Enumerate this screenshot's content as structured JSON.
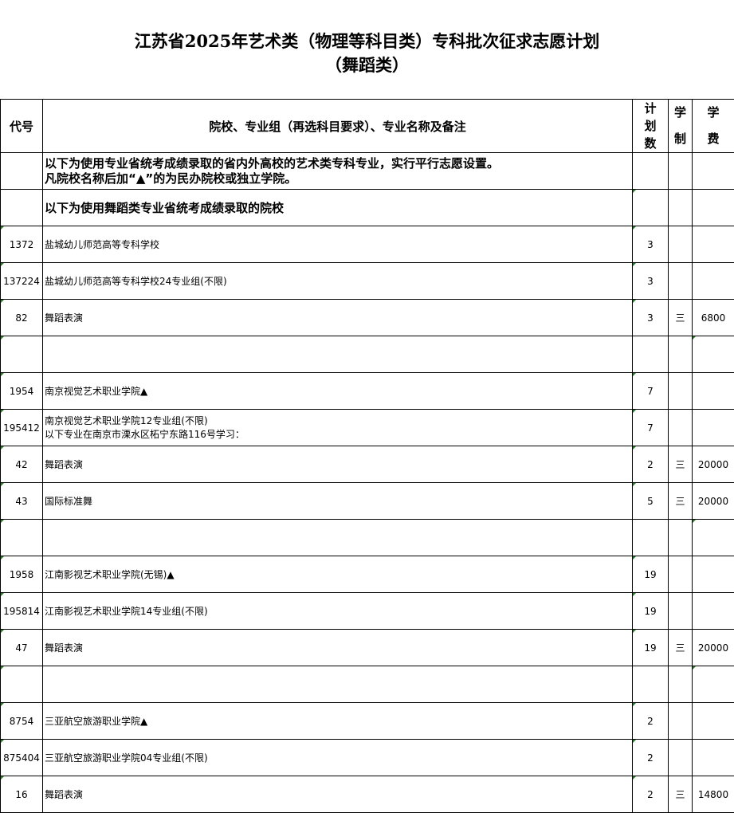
{
  "title": "江苏省2025年艺术类（物理等科目类）专科批次征求志愿计划",
  "subtitle": "（舞蹈类）",
  "headers": {
    "code": "代号",
    "name": "院校、专业组（再选科目要求）、专业名称及备注",
    "plan": [
      "计",
      "划",
      "数"
    ],
    "years": [
      "学",
      "制"
    ],
    "fee": [
      "学",
      "费"
    ]
  },
  "notes": [
    {
      "lines": [
        "以下为使用专业省统考成绩录取的省内外高校的艺术类专科专业，实行平行志愿设置。",
        "凡院校名称后加“▲”的为民办院校或独立学院。"
      ]
    },
    {
      "lines": [
        "以下为使用舞蹈类专业省统考成绩录取的院校"
      ]
    }
  ],
  "rows": [
    {
      "code": "1372",
      "name": "盐城幼儿师范高等专科学校",
      "plan": "3",
      "years": "",
      "fee": ""
    },
    {
      "code": "137224",
      "name": "盐城幼儿师范高等专科学校24专业组(不限)",
      "plan": "3",
      "years": "",
      "fee": ""
    },
    {
      "code": "82",
      "name": "舞蹈表演",
      "plan": "3",
      "years": "三",
      "fee": "6800"
    },
    {
      "code": "",
      "name": "",
      "plan": "",
      "years": "",
      "fee": ""
    },
    {
      "code": "1954",
      "name": "南京视觉艺术职业学院▲",
      "plan": "7",
      "years": "",
      "fee": ""
    },
    {
      "code": "195412",
      "name": "南京视觉艺术职业学院12专业组(不限)",
      "name2": "以下专业在南京市溧水区柘宁东路116号学习：",
      "plan": "7",
      "years": "",
      "fee": ""
    },
    {
      "code": "42",
      "name": "舞蹈表演",
      "plan": "2",
      "years": "三",
      "fee": "20000"
    },
    {
      "code": "43",
      "name": "国际标准舞",
      "plan": "5",
      "years": "三",
      "fee": "20000"
    },
    {
      "code": "",
      "name": "",
      "plan": "",
      "years": "",
      "fee": ""
    },
    {
      "code": "1958",
      "name": "江南影视艺术职业学院(无锡)▲",
      "plan": "19",
      "years": "",
      "fee": ""
    },
    {
      "code": "195814",
      "name": "江南影视艺术职业学院14专业组(不限)",
      "plan": "19",
      "years": "",
      "fee": ""
    },
    {
      "code": "47",
      "name": "舞蹈表演",
      "plan": "19",
      "years": "三",
      "fee": "20000"
    },
    {
      "code": "",
      "name": "",
      "plan": "",
      "years": "",
      "fee": ""
    },
    {
      "code": "8754",
      "name": "三亚航空旅游职业学院▲",
      "plan": "2",
      "years": "",
      "fee": ""
    },
    {
      "code": "875404",
      "name": "三亚航空旅游职业学院04专业组(不限)",
      "plan": "2",
      "years": "",
      "fee": ""
    },
    {
      "code": "16",
      "name": "舞蹈表演",
      "plan": "2",
      "years": "三",
      "fee": "14800"
    }
  ]
}
